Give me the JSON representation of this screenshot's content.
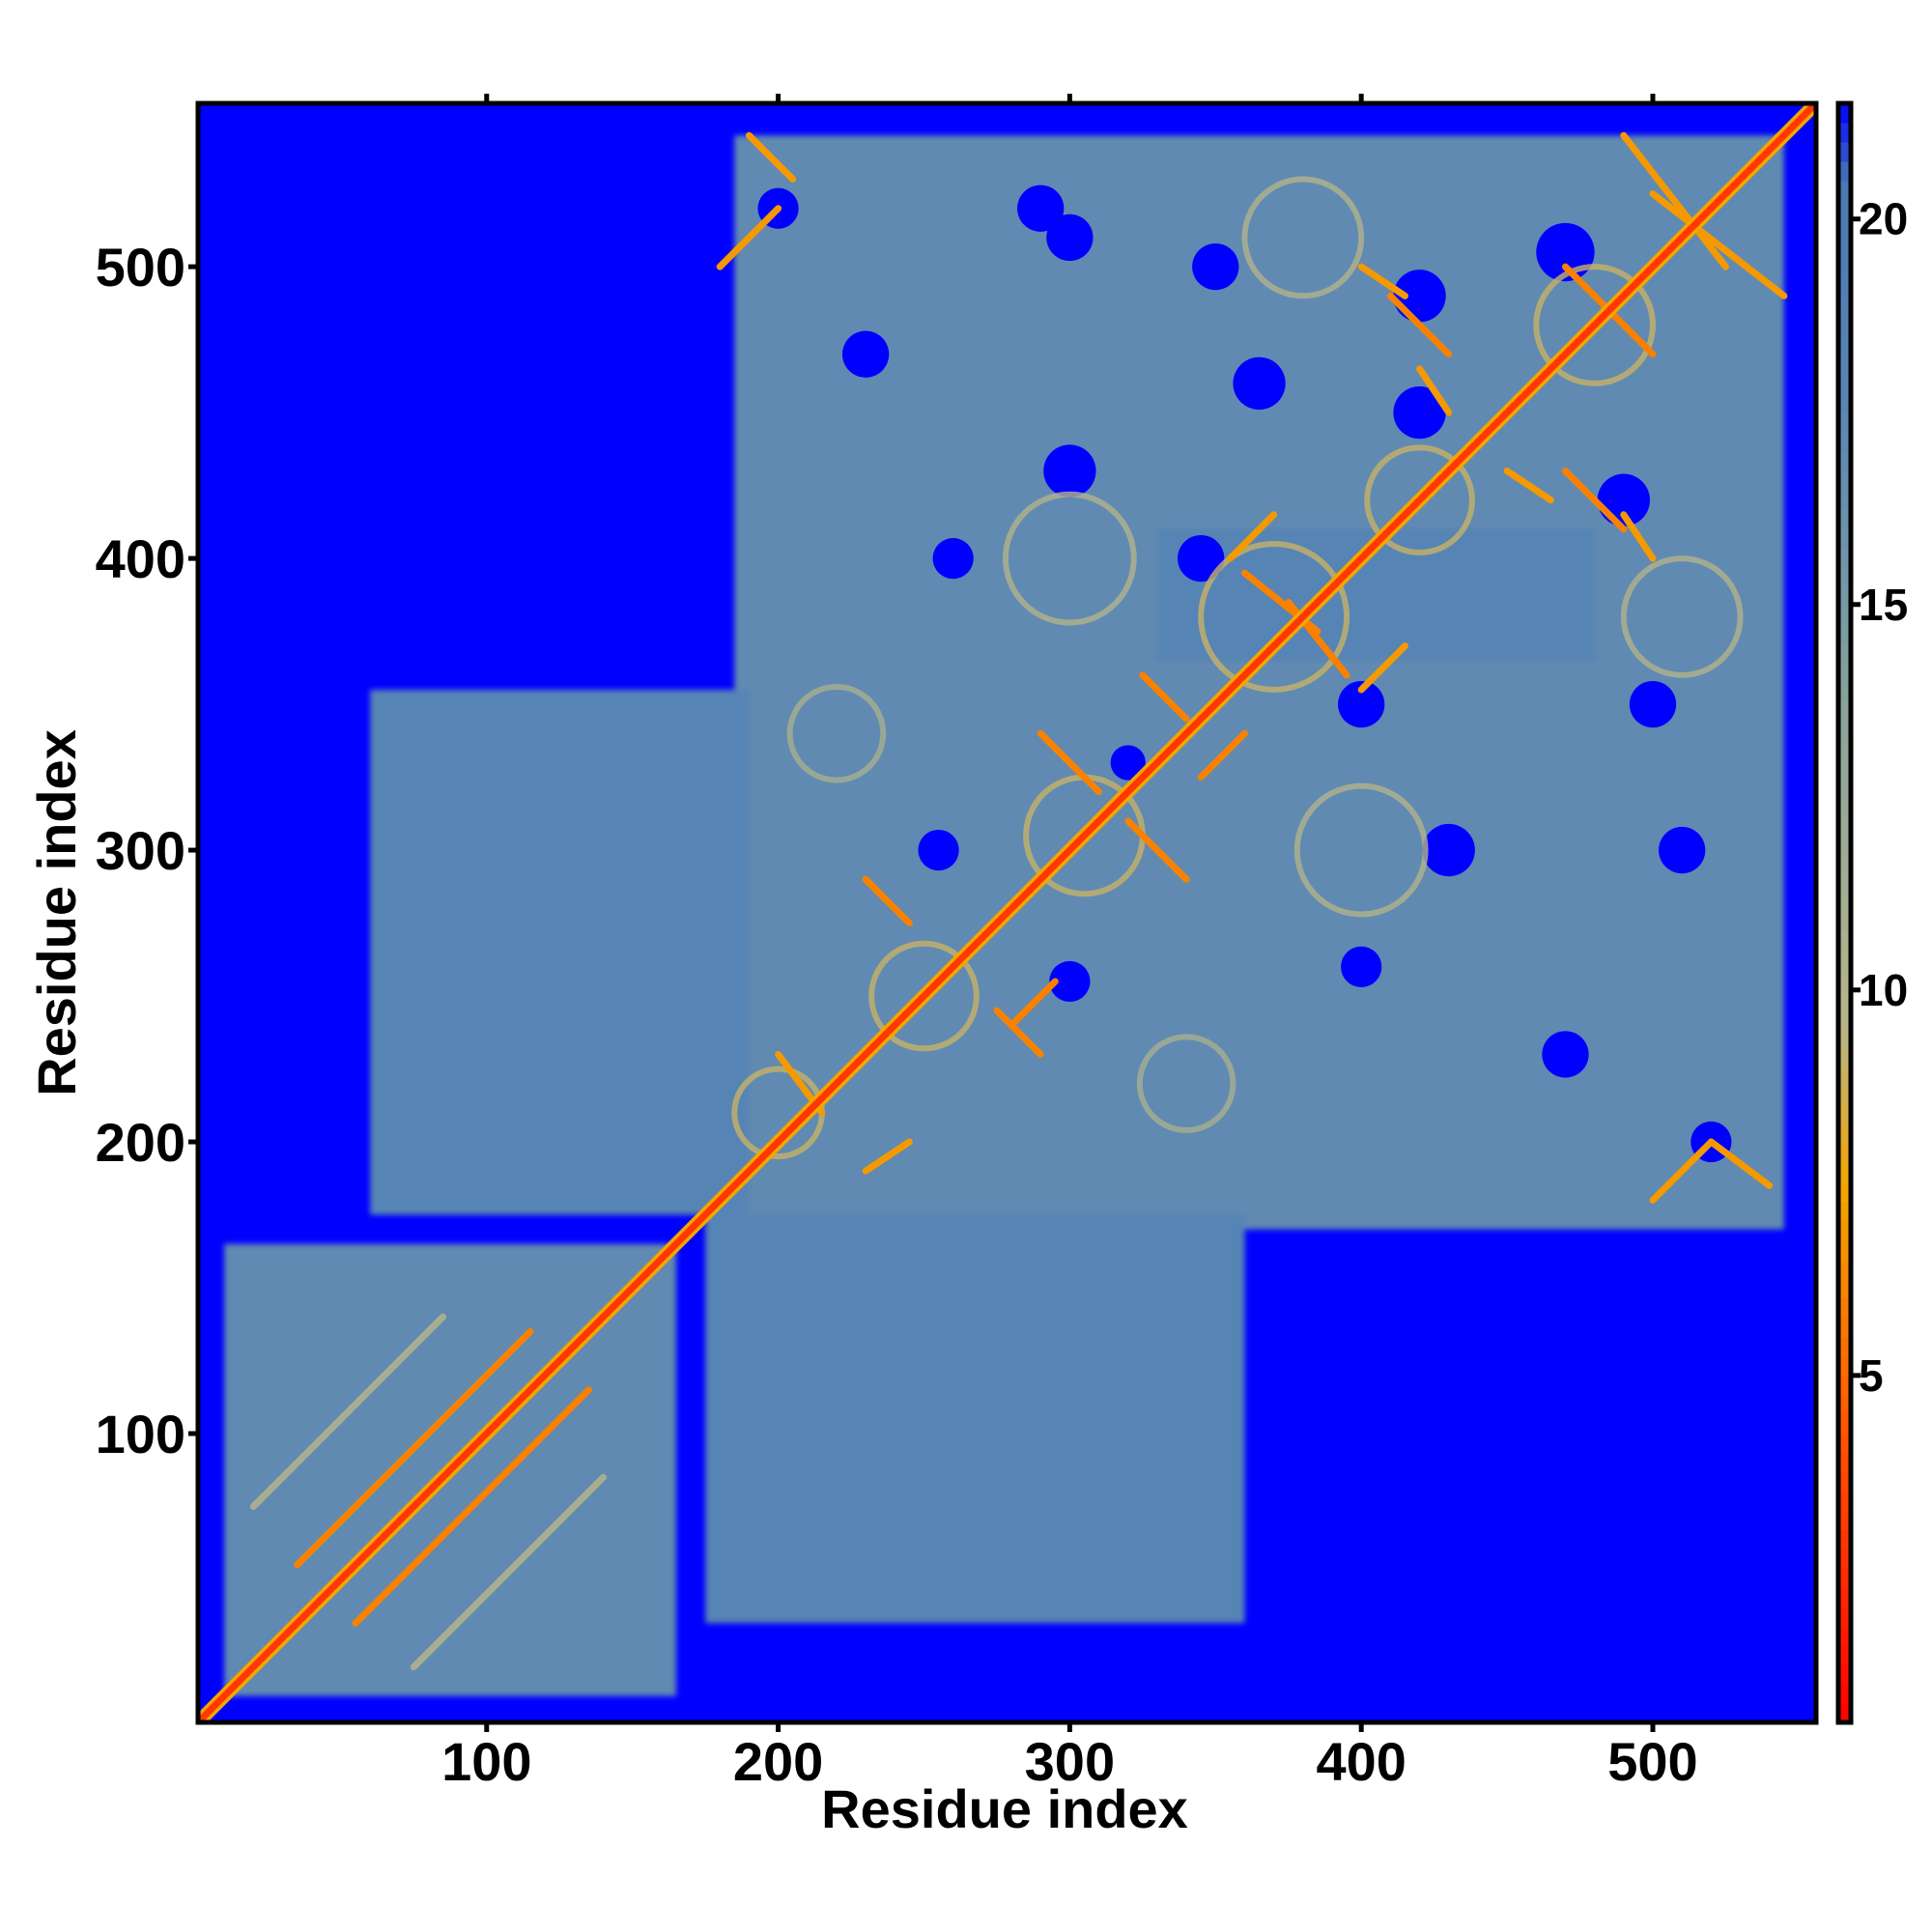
{
  "chart_data": {
    "type": "heatmap",
    "title": "",
    "xlabel": "Residue index",
    "ylabel": "Residue index",
    "xlim": [
      1,
      556
    ],
    "ylim": [
      1,
      556
    ],
    "x_ticks": [
      100,
      200,
      300,
      400,
      500
    ],
    "y_ticks": [
      100,
      200,
      300,
      400,
      500
    ],
    "grid": false,
    "legend": "none",
    "colorbar": {
      "ticks": [
        5,
        10,
        15,
        20
      ],
      "range": [
        0.5,
        21.5
      ],
      "colors": [
        {
          "value": 0.5,
          "color": "#ff0000"
        },
        {
          "value": 4.5,
          "color": "#ff5a00"
        },
        {
          "value": 7.5,
          "color": "#f2a700"
        },
        {
          "value": 9.5,
          "color": "#b8b48a"
        },
        {
          "value": 13.5,
          "color": "#8aa49a"
        },
        {
          "value": 17.5,
          "color": "#5a86b4"
        },
        {
          "value": 20.5,
          "color": "#4a78b4"
        },
        {
          "value": 21.5,
          "color": "#0000ff"
        }
      ]
    },
    "background_value": 21.5,
    "regions": [
      {
        "x": [
          10,
          165
        ],
        "y": [
          10,
          165
        ],
        "value": 17
      },
      {
        "x": [
          185,
          545
        ],
        "y": [
          170,
          545
        ],
        "value": 17
      },
      {
        "x": [
          60,
          190
        ],
        "y": [
          175,
          355
        ],
        "value": 18
      },
      {
        "x": [
          175,
          360
        ],
        "y": [
          35,
          175
        ],
        "value": 18
      },
      {
        "x": [
          330,
          480
        ],
        "y": [
          365,
          410
        ],
        "value": 18
      }
    ],
    "holes": [
      {
        "x": 290,
        "y": 520,
        "r": 8
      },
      {
        "x": 365,
        "y": 460,
        "r": 9
      },
      {
        "x": 420,
        "y": 450,
        "r": 9
      },
      {
        "x": 470,
        "y": 505,
        "r": 10
      },
      {
        "x": 345,
        "y": 400,
        "r": 8
      },
      {
        "x": 400,
        "y": 350,
        "r": 8
      },
      {
        "x": 255,
        "y": 300,
        "r": 7
      },
      {
        "x": 300,
        "y": 255,
        "r": 7
      },
      {
        "x": 230,
        "y": 470,
        "r": 8
      },
      {
        "x": 470,
        "y": 230,
        "r": 8
      },
      {
        "x": 510,
        "y": 300,
        "r": 8
      },
      {
        "x": 300,
        "y": 510,
        "r": 8
      },
      {
        "x": 520,
        "y": 200,
        "r": 7
      },
      {
        "x": 200,
        "y": 520,
        "r": 7
      },
      {
        "x": 320,
        "y": 330,
        "r": 6
      },
      {
        "x": 430,
        "y": 300,
        "r": 9
      },
      {
        "x": 300,
        "y": 430,
        "r": 9
      },
      {
        "x": 490,
        "y": 420,
        "r": 9
      },
      {
        "x": 420,
        "y": 490,
        "r": 9
      },
      {
        "x": 260,
        "y": 400,
        "r": 7
      },
      {
        "x": 400,
        "y": 260,
        "r": 7
      },
      {
        "x": 500,
        "y": 350,
        "r": 8
      },
      {
        "x": 350,
        "y": 500,
        "r": 8
      }
    ],
    "diagonal": [
      {
        "from": 1,
        "to": 556,
        "value": 3
      }
    ],
    "contact_bands": [
      {
        "from": [
          35,
          55
        ],
        "to": [
          115,
          135
        ],
        "value": 6
      },
      {
        "from": [
          55,
          35
        ],
        "to": [
          135,
          115
        ],
        "value": 6
      },
      {
        "from": [
          20,
          75
        ],
        "to": [
          85,
          140
        ],
        "value": 11
      },
      {
        "from": [
          75,
          20
        ],
        "to": [
          140,
          85
        ],
        "value": 11
      },
      {
        "from": [
          375,
          385
        ],
        "to": [
          395,
          360
        ],
        "value": 6
      },
      {
        "from": [
          385,
          375
        ],
        "to": [
          360,
          395
        ],
        "value": 6
      },
      {
        "from": [
          290,
          340
        ],
        "to": [
          310,
          320
        ],
        "value": 6
      },
      {
        "from": [
          340,
          290
        ],
        "to": [
          320,
          310
        ],
        "value": 6
      },
      {
        "from": [
          230,
          290
        ],
        "to": [
          245,
          275
        ],
        "value": 6
      },
      {
        "from": [
          290,
          230
        ],
        "to": [
          275,
          245
        ],
        "value": 6
      },
      {
        "from": [
          280,
          240
        ],
        "to": [
          295,
          255
        ],
        "value": 6
      },
      {
        "from": [
          325,
          360
        ],
        "to": [
          340,
          345
        ],
        "value": 6
      },
      {
        "from": [
          345,
          325
        ],
        "to": [
          360,
          340
        ],
        "value": 6
      },
      {
        "from": [
          410,
          490
        ],
        "to": [
          430,
          470
        ],
        "value": 6
      },
      {
        "from": [
          490,
          410
        ],
        "to": [
          470,
          430
        ],
        "value": 6
      },
      {
        "from": [
          470,
          500
        ],
        "to": [
          500,
          470
        ],
        "value": 6
      },
      {
        "from": [
          500,
          525
        ],
        "to": [
          545,
          490
        ],
        "value": 7
      },
      {
        "from": [
          525,
          500
        ],
        "to": [
          490,
          545
        ],
        "value": 7
      },
      {
        "from": [
          180,
          500
        ],
        "to": [
          200,
          520
        ],
        "value": 7
      },
      {
        "from": [
          500,
          180
        ],
        "to": [
          520,
          200
        ],
        "value": 7
      },
      {
        "from": [
          190,
          545
        ],
        "to": [
          205,
          530
        ],
        "value": 7
      },
      {
        "from": [
          520,
          200
        ],
        "to": [
          540,
          185
        ],
        "value": 7
      },
      {
        "from": [
          200,
          230
        ],
        "to": [
          215,
          210
        ],
        "value": 7
      },
      {
        "from": [
          230,
          190
        ],
        "to": [
          245,
          200
        ],
        "value": 7
      },
      {
        "from": [
          400,
          355
        ],
        "to": [
          415,
          370
        ],
        "value": 7
      },
      {
        "from": [
          355,
          400
        ],
        "to": [
          370,
          415
        ],
        "value": 7
      },
      {
        "from": [
          450,
          430
        ],
        "to": [
          465,
          420
        ],
        "value": 7
      },
      {
        "from": [
          430,
          450
        ],
        "to": [
          420,
          465
        ],
        "value": 7
      },
      {
        "from": [
          400,
          500
        ],
        "to": [
          415,
          490
        ],
        "value": 7
      },
      {
        "from": [
          500,
          400
        ],
        "to": [
          490,
          415
        ],
        "value": 7
      }
    ],
    "arcs": [
      {
        "x": 370,
        "y": 380,
        "r": 25,
        "value": 9
      },
      {
        "x": 305,
        "y": 305,
        "r": 20,
        "value": 9
      },
      {
        "x": 250,
        "y": 250,
        "r": 18,
        "value": 9
      },
      {
        "x": 480,
        "y": 480,
        "r": 20,
        "value": 9
      },
      {
        "x": 420,
        "y": 420,
        "r": 18,
        "value": 9
      },
      {
        "x": 200,
        "y": 210,
        "r": 15,
        "value": 9
      },
      {
        "x": 400,
        "y": 300,
        "r": 22,
        "value": 10
      },
      {
        "x": 300,
        "y": 400,
        "r": 22,
        "value": 10
      },
      {
        "x": 510,
        "y": 380,
        "r": 20,
        "value": 10
      },
      {
        "x": 380,
        "y": 510,
        "r": 20,
        "value": 10
      },
      {
        "x": 220,
        "y": 340,
        "r": 16,
        "value": 11
      },
      {
        "x": 340,
        "y": 220,
        "r": 16,
        "value": 11
      }
    ]
  }
}
